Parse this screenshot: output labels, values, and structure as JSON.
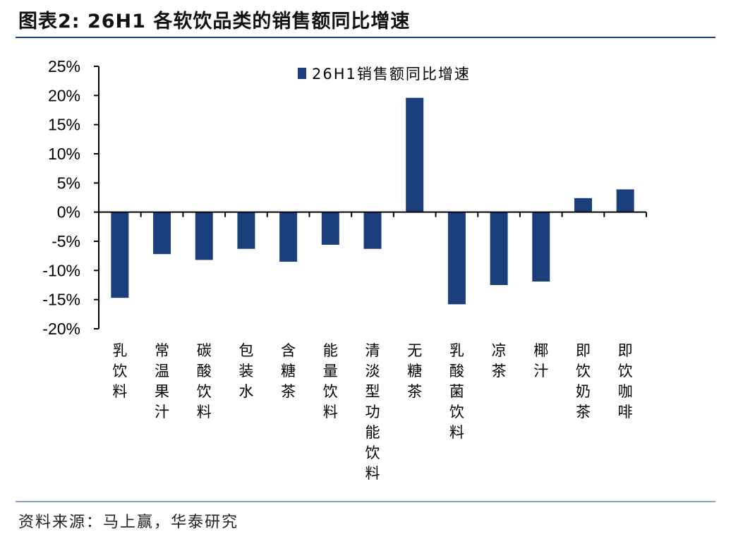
{
  "header": {
    "title": "图表2:  26H1 各软饮品类的销售额同比增速"
  },
  "footer": {
    "source": "资料来源：马上赢，华泰研究"
  },
  "colors": {
    "bar": "#1a3f7a",
    "axis": "#000000",
    "rule": "#1a3f7a"
  },
  "chart_data": {
    "type": "bar",
    "title": "",
    "xlabel": "",
    "ylabel": "",
    "ylim": [
      -20,
      25
    ],
    "yticks": [
      25,
      20,
      15,
      10,
      5,
      0,
      -5,
      -10,
      -15,
      -20
    ],
    "ytick_labels": [
      "25%",
      "20%",
      "15%",
      "10%",
      "5%",
      "0%",
      "-5%",
      "-10%",
      "-15%",
      "-20%"
    ],
    "grid": false,
    "legend": "top-center",
    "categories": [
      "乳饮料",
      "常温果汁",
      "碳酸饮料",
      "包装水",
      "含糖茶",
      "能量饮料",
      "清淡型功能饮料",
      "无糖茶",
      "乳酸菌饮料",
      "凉茶",
      "椰汁",
      "即饮奶茶",
      "即饮咖啡"
    ],
    "series": [
      {
        "name": "26H1销售额同比增速",
        "values": [
          -14.7,
          -7.2,
          -8.2,
          -6.3,
          -8.5,
          -5.6,
          -6.3,
          19.6,
          -15.8,
          -12.5,
          -11.9,
          2.4,
          3.9
        ]
      }
    ]
  }
}
